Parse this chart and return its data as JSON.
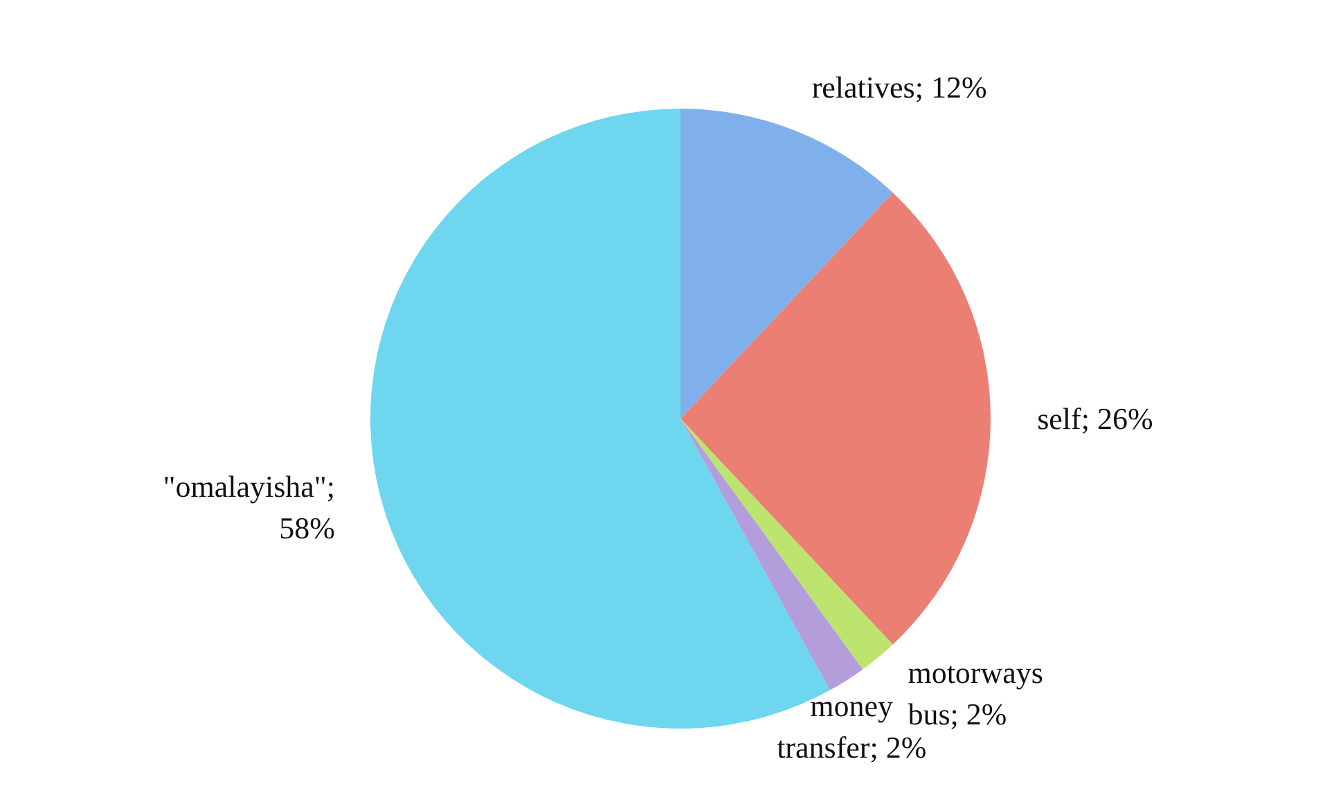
{
  "chart_data": {
    "type": "pie",
    "categories": [
      "relatives",
      "self",
      "motorways bus",
      "money transfer",
      "\"omalayisha\""
    ],
    "values": [
      12,
      26,
      2,
      2,
      58
    ],
    "colors": [
      "#7fb0ec",
      "#ec7f74",
      "#bde46e",
      "#b39ddb",
      "#6fd6ef"
    ],
    "value_labels": [
      "; 12%",
      "; 26%",
      "; 2%",
      "; 2%",
      "; 58%"
    ]
  }
}
